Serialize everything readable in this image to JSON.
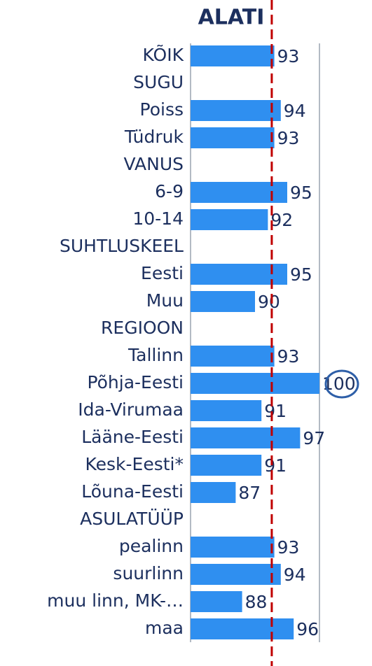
{
  "chart_data": {
    "type": "hbar",
    "title": "ALATI",
    "categories": [
      "KÕIK",
      "SUGU",
      "Poiss",
      "Tüdruk",
      "VANUS",
      "6-9",
      "10-14",
      "SUHTLUSKEEL",
      "Eesti",
      "Muu",
      "REGIOON",
      "Tallinn",
      "Põhja-Eesti",
      "Ida-Virumaa",
      "Lääne-Eesti",
      "Kesk-Eesti*",
      "Lõuna-Eesti",
      "ASULATÜÜP",
      "pealinn",
      "suurlinn",
      "muu linn, MK-…",
      "maa"
    ],
    "values": [
      93,
      null,
      94,
      93,
      null,
      95,
      92,
      null,
      95,
      90,
      null,
      93,
      100,
      91,
      97,
      91,
      87,
      null,
      93,
      94,
      88,
      96
    ],
    "color": "#2f8ff0",
    "xlim": [
      80,
      100
    ],
    "reference_line": {
      "value": 92.6,
      "color": "#c00000"
    }
  }
}
